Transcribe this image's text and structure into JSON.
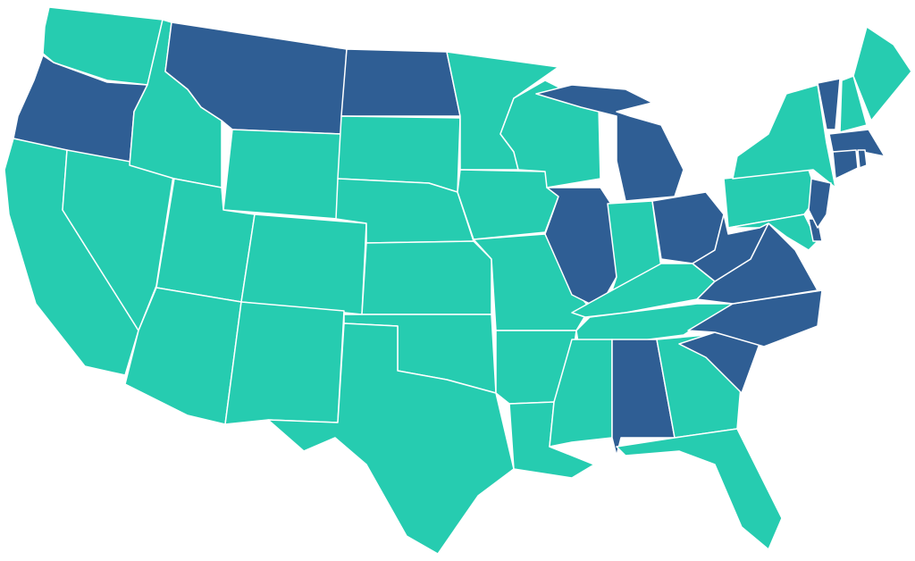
{
  "map": {
    "colors": {
      "dark": "#2F5E94",
      "light": "#26CCB0",
      "border": "#FFFFFF"
    },
    "states": [
      {
        "id": "WA",
        "group": "light"
      },
      {
        "id": "OR",
        "group": "dark"
      },
      {
        "id": "CA",
        "group": "light"
      },
      {
        "id": "NV",
        "group": "light"
      },
      {
        "id": "ID",
        "group": "light"
      },
      {
        "id": "MT",
        "group": "dark"
      },
      {
        "id": "WY",
        "group": "light"
      },
      {
        "id": "UT",
        "group": "light"
      },
      {
        "id": "CO",
        "group": "light"
      },
      {
        "id": "AZ",
        "group": "light"
      },
      {
        "id": "NM",
        "group": "light"
      },
      {
        "id": "ND",
        "group": "dark"
      },
      {
        "id": "SD",
        "group": "light"
      },
      {
        "id": "NE",
        "group": "light"
      },
      {
        "id": "KS",
        "group": "light"
      },
      {
        "id": "OK",
        "group": "light"
      },
      {
        "id": "TX",
        "group": "light"
      },
      {
        "id": "MN",
        "group": "light"
      },
      {
        "id": "IA",
        "group": "light"
      },
      {
        "id": "MO",
        "group": "light"
      },
      {
        "id": "AR",
        "group": "light"
      },
      {
        "id": "LA",
        "group": "light"
      },
      {
        "id": "WI",
        "group": "light"
      },
      {
        "id": "MI",
        "group": "dark"
      },
      {
        "id": "IL",
        "group": "dark"
      },
      {
        "id": "IN",
        "group": "light"
      },
      {
        "id": "OH",
        "group": "dark"
      },
      {
        "id": "KY",
        "group": "light"
      },
      {
        "id": "TN",
        "group": "light"
      },
      {
        "id": "MS",
        "group": "light"
      },
      {
        "id": "AL",
        "group": "dark"
      },
      {
        "id": "GA",
        "group": "light"
      },
      {
        "id": "FL",
        "group": "light"
      },
      {
        "id": "SC",
        "group": "dark"
      },
      {
        "id": "NC",
        "group": "dark"
      },
      {
        "id": "VA",
        "group": "dark"
      },
      {
        "id": "WV",
        "group": "dark"
      },
      {
        "id": "PA",
        "group": "light"
      },
      {
        "id": "NY",
        "group": "light"
      },
      {
        "id": "MD",
        "group": "light"
      },
      {
        "id": "DE",
        "group": "dark"
      },
      {
        "id": "NJ",
        "group": "dark"
      },
      {
        "id": "VT",
        "group": "dark"
      },
      {
        "id": "NH",
        "group": "light"
      },
      {
        "id": "ME",
        "group": "light"
      },
      {
        "id": "MA",
        "group": "dark"
      },
      {
        "id": "CT",
        "group": "dark"
      },
      {
        "id": "RI",
        "group": "dark"
      }
    ]
  }
}
